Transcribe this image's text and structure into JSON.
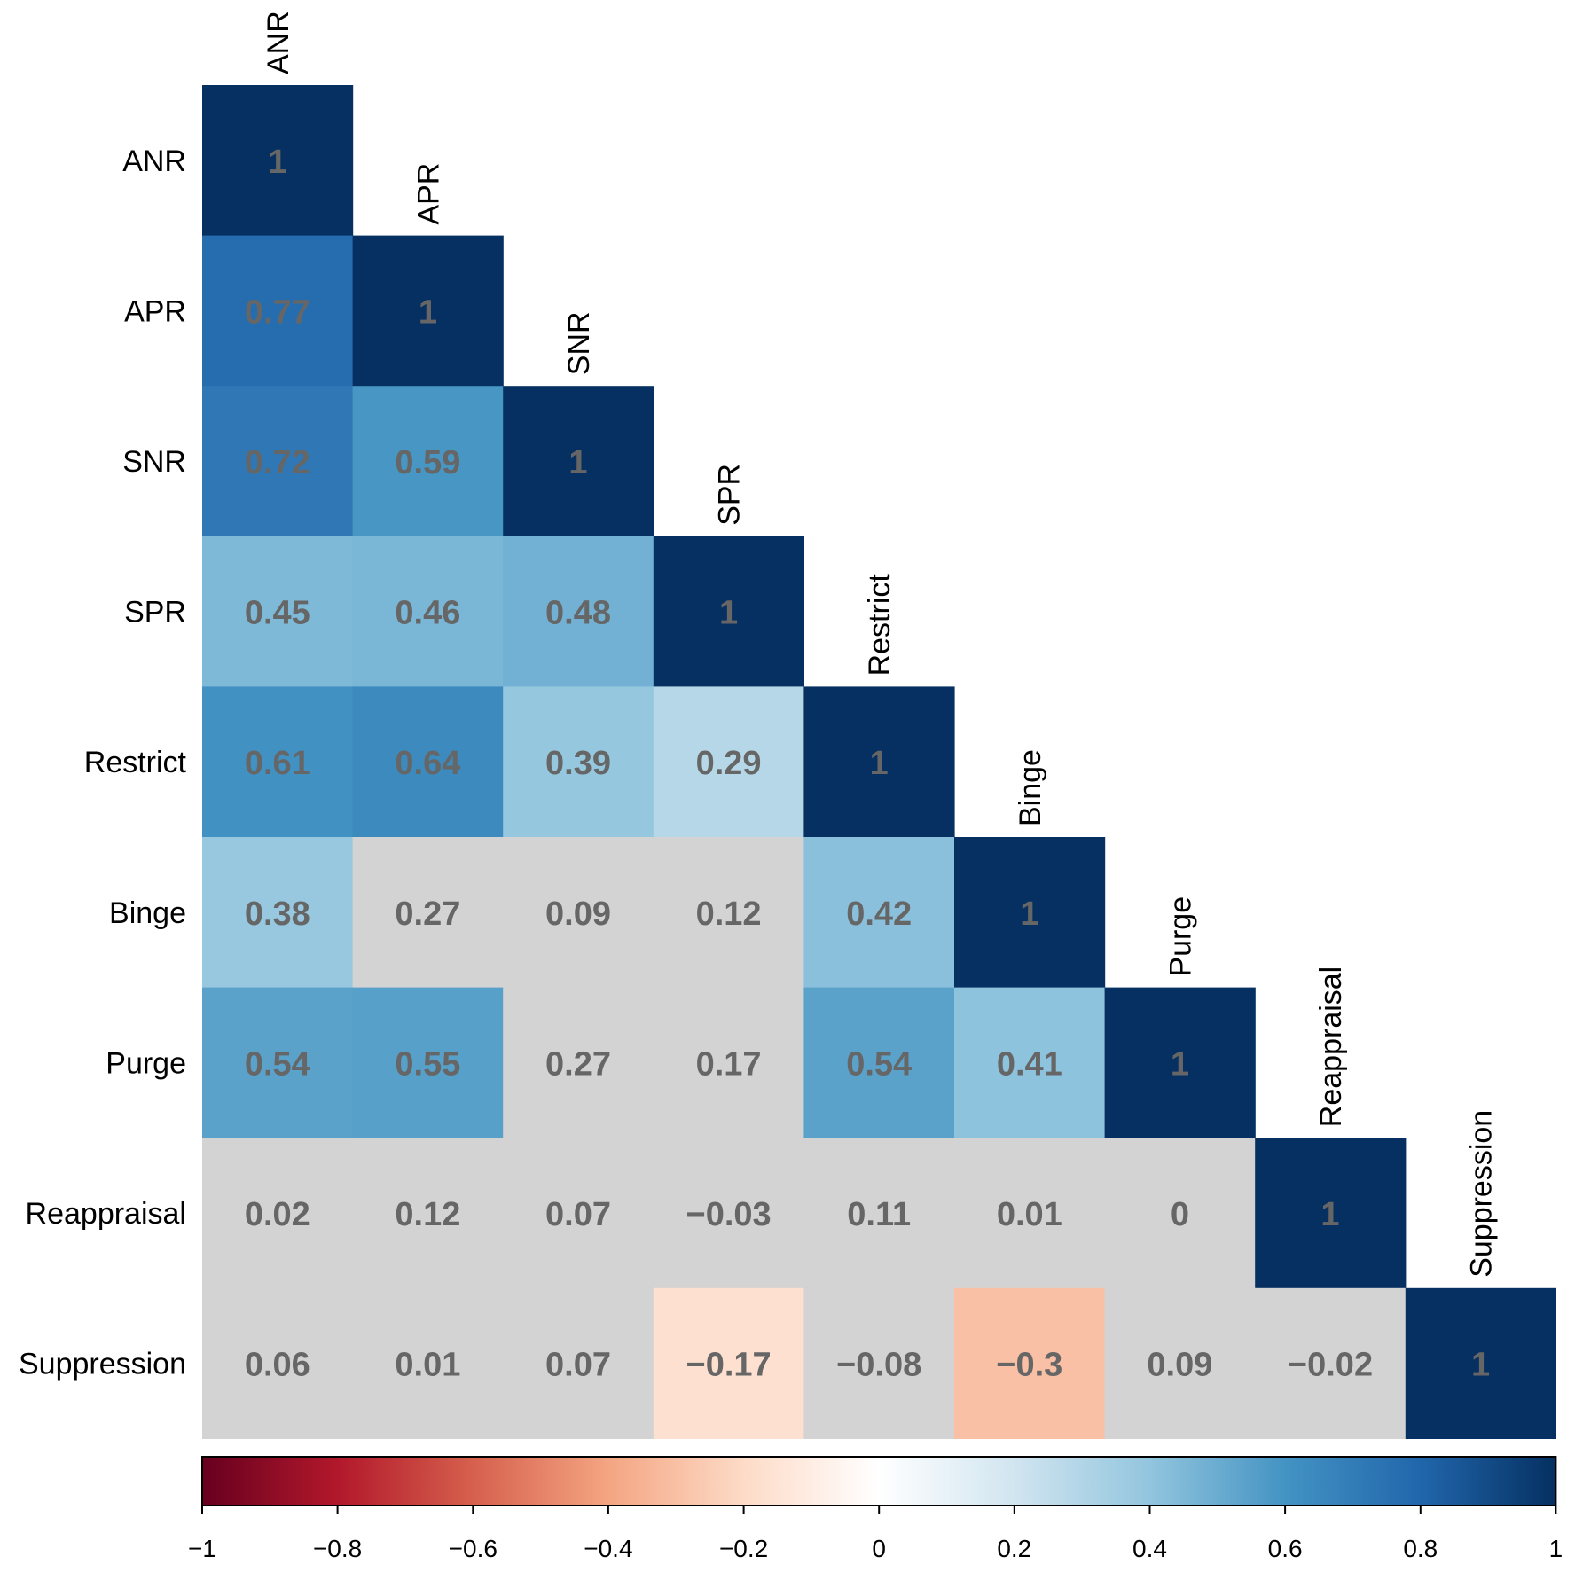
{
  "chart_data": {
    "type": "heatmap",
    "subtype": "lower-triangular correlation matrix",
    "variables": [
      "ANR",
      "APR",
      "SNR",
      "SPR",
      "Restrict",
      "Binge",
      "Purge",
      "Reappraisal",
      "Suppression"
    ],
    "matrix": [
      [
        1
      ],
      [
        0.77,
        1
      ],
      [
        0.72,
        0.59,
        1
      ],
      [
        0.45,
        0.46,
        0.48,
        1
      ],
      [
        0.61,
        0.64,
        0.39,
        0.29,
        1
      ],
      [
        0.38,
        0.27,
        0.09,
        0.12,
        0.42,
        1
      ],
      [
        0.54,
        0.55,
        0.27,
        0.17,
        0.54,
        0.41,
        1
      ],
      [
        0.02,
        0.12,
        0.07,
        -0.03,
        0.11,
        0.01,
        0,
        1
      ],
      [
        0.06,
        0.01,
        0.07,
        -0.17,
        -0.08,
        -0.3,
        0.09,
        -0.02,
        1
      ]
    ],
    "labels": [
      [
        "1"
      ],
      [
        "0.77",
        "1"
      ],
      [
        "0.72",
        "0.59",
        "1"
      ],
      [
        "0.45",
        "0.46",
        "0.48",
        "1"
      ],
      [
        "0.61",
        "0.64",
        "0.39",
        "0.29",
        "1"
      ],
      [
        "0.38",
        "0.27",
        "0.09",
        "0.12",
        "0.42",
        "1"
      ],
      [
        "0.54",
        "0.55",
        "0.27",
        "0.17",
        "0.54",
        "0.41",
        "1"
      ],
      [
        "0.02",
        "0.12",
        "0.07",
        "−0.03",
        "0.11",
        "0.01",
        "0",
        "1"
      ],
      [
        "0.06",
        "0.01",
        "0.07",
        "−0.17",
        "−0.08",
        "−0.3",
        "0.09",
        "−0.02",
        "1"
      ]
    ],
    "insignificant_color": "#d3d3d3",
    "highlighted_insignificant": [
      [
        8,
        3
      ]
    ],
    "significance_note": "non-significant cells shown in grey",
    "colorbar": {
      "range": [
        -1,
        1
      ],
      "ticks": [
        -1,
        -0.8,
        -0.6,
        -0.4,
        -0.2,
        0,
        0.2,
        0.4,
        0.6,
        0.8,
        1
      ],
      "tick_labels": [
        "−1",
        "−0.8",
        "−0.6",
        "−0.4",
        "−0.2",
        "0",
        "0.2",
        "0.4",
        "0.6",
        "0.8",
        "1"
      ],
      "position": "bottom"
    },
    "palette": [
      "#67001f",
      "#b2182b",
      "#d6604d",
      "#f4a582",
      "#fddbc7",
      "#ffffff",
      "#d1e5f0",
      "#92c5de",
      "#4393c3",
      "#2166ac",
      "#053061"
    ]
  }
}
